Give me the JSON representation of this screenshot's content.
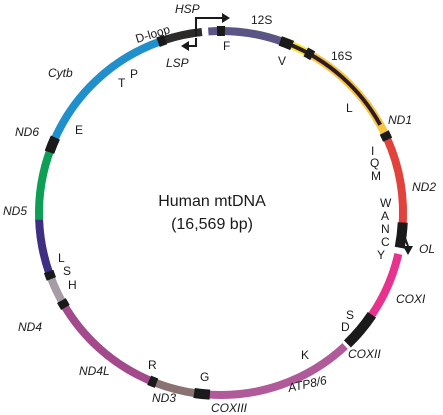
{
  "diagram": {
    "title": "Human mtDNA",
    "subtitle": "(16,569 bp)"
  },
  "segments": [
    {
      "id": "12s",
      "start": 1,
      "end": 28,
      "color": "#f6e62b"
    },
    {
      "id": "16s",
      "start": 30,
      "end": 64,
      "color": "#f8c33f"
    },
    {
      "id": "nd1",
      "start": 66,
      "end": 95,
      "color": "#e1423b"
    },
    {
      "id": "nd2",
      "start": 103,
      "end": 127,
      "color": "#e8338e"
    },
    {
      "id": "coxi",
      "start": 137,
      "end": 185,
      "color": "#b05a9a"
    },
    {
      "id": "coxii",
      "start": 188,
      "end": 201,
      "color": "#8a7272"
    },
    {
      "id": "atp86",
      "start": 203,
      "end": 240,
      "color": "#a34a8c"
    },
    {
      "id": "nd3",
      "start": 240,
      "end": 249,
      "color": "#a59ca5"
    },
    {
      "id": "nd4l",
      "start": 251,
      "end": 268,
      "color": "#3e2f82"
    },
    {
      "id": "nd4",
      "start": 268,
      "end": 291,
      "color": "#0e9f56"
    },
    {
      "id": "nd5",
      "start": 293,
      "end": 340,
      "color": "#2090cd"
    },
    {
      "id": "nd6",
      "start": 342,
      "end": 354,
      "color": "#2d2a2a"
    },
    {
      "id": "cytb",
      "start": 356,
      "end": 380,
      "color": "#5b5486"
    },
    {
      "id": "dloop",
      "start": 382,
      "end": 421,
      "color": "#2d1a2a"
    }
  ],
  "tick_marks": [
    {
      "id": "F",
      "angle": 0,
      "color": "#1a1a1a"
    },
    {
      "id": "V",
      "angle": 29,
      "color": "#1a1a1a"
    },
    {
      "id": "L1",
      "angle": 65,
      "color": "#1a1a1a"
    },
    {
      "id": "IQM",
      "angle": 97,
      "color": "#1a1a1a",
      "width": 8
    },
    {
      "id": "WANCY",
      "angle": 130,
      "color": "#1a1a1a",
      "width": 12
    },
    {
      "id": "SD",
      "angle": 186,
      "color": "#1a1a1a",
      "width": 5
    },
    {
      "id": "K",
      "angle": 202,
      "color": "#1a1a1a"
    },
    {
      "id": "G",
      "angle": 240,
      "color": "#1a1a1a"
    },
    {
      "id": "R",
      "angle": 250,
      "color": "#1a1a1a"
    },
    {
      "id": "LSH",
      "angle": 292,
      "color": "#1a1a1a",
      "width": 5
    },
    {
      "id": "E",
      "angle": 341,
      "color": "#1a1a1a"
    },
    {
      "id": "TP",
      "angle": 381,
      "color": "#1a1a1a",
      "width": 4
    }
  ],
  "labels": {
    "hsp": "HSP",
    "lsp": "LSP",
    "dloop": "D-loop",
    "s12": "12S",
    "s16": "16S",
    "nd1": "ND1",
    "nd2": "ND2",
    "ol": "OL",
    "coxi": "COXI",
    "coxii": "COXII",
    "atp86": "ATP8/6",
    "coxiii": "COXIII",
    "nd3": "ND3",
    "nd4l": "ND4L",
    "nd4": "ND4",
    "nd5": "ND5",
    "nd6": "ND6",
    "cytb": "Cytb",
    "f": "F",
    "v": "V",
    "l1": "L",
    "i": "I",
    "q": "Q",
    "m": "M",
    "w": "W",
    "a": "A",
    "n": "N",
    "c": "C",
    "y": "Y",
    "s1": "S",
    "d": "D",
    "k": "K",
    "g": "G",
    "r": "R",
    "l2": "L",
    "s2": "S",
    "h": "H",
    "e": "E",
    "t": "T",
    "p": "P"
  }
}
